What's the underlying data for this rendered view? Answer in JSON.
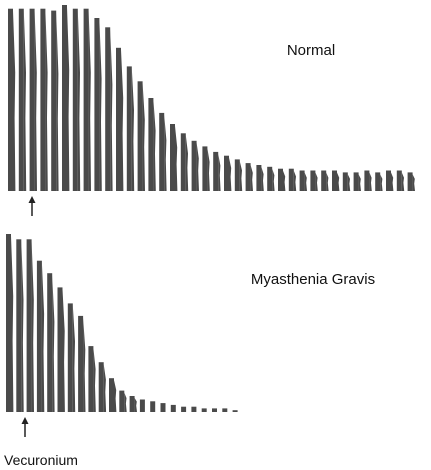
{
  "chart_data": [
    {
      "type": "bar",
      "title": "Normal",
      "xlabel": "",
      "ylabel": "",
      "ylim": [
        0,
        100
      ],
      "marker_after_bar": 2,
      "marker_label": "",
      "series": [
        {
          "color": "#4a4a4a",
          "values": [
            98,
            98,
            98,
            98,
            97,
            100,
            98,
            98,
            93,
            88,
            77,
            67,
            59,
            50,
            42,
            36,
            31,
            27,
            24,
            21,
            19,
            17,
            15,
            14,
            13,
            12,
            12,
            11,
            11,
            11,
            11,
            10,
            10,
            11,
            10,
            11,
            11,
            10
          ]
        }
      ]
    },
    {
      "type": "bar",
      "title": "Myasthenia Gravis",
      "xlabel": "",
      "ylabel": "",
      "ylim": [
        0,
        100
      ],
      "marker_after_bar": 2,
      "marker_label": "Vecuronium",
      "series": [
        {
          "color": "#4a4a4a",
          "values": [
            100,
            97,
            97,
            85,
            78,
            70,
            61,
            54,
            37,
            28,
            19,
            12,
            9,
            7,
            6,
            5,
            4,
            3,
            3,
            2,
            2,
            2,
            1
          ]
        }
      ]
    }
  ]
}
